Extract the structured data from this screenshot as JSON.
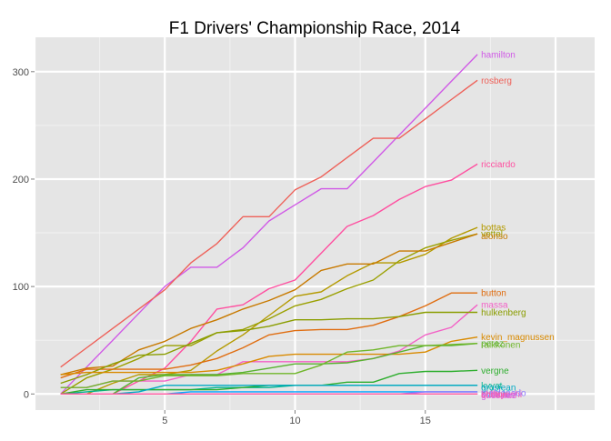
{
  "chart_data": {
    "type": "line",
    "title": "F1 Drivers' Championship Race, 2014",
    "xlabel": "",
    "ylabel": "",
    "xlim": [
      0,
      21.5
    ],
    "ylim": [
      -15,
      332
    ],
    "x_ticks": [
      5,
      10,
      15
    ],
    "y_ticks": [
      0,
      100,
      200,
      300
    ],
    "grid": true,
    "legend": "none (series labelled at line ends)",
    "x": [
      1,
      2,
      3,
      4,
      5,
      6,
      7,
      8,
      9,
      10,
      11,
      12,
      13,
      14,
      15,
      16,
      17
    ],
    "series": [
      {
        "name": "hamilton",
        "color": "#d05ae6",
        "values": [
          0,
          25,
          50,
          75,
          100,
          118,
          118,
          136,
          161,
          176,
          191,
          191,
          216,
          241,
          266,
          291,
          316
        ]
      },
      {
        "name": "rosberg",
        "color": "#ee6159",
        "values": [
          25,
          43,
          61,
          79,
          97,
          122,
          140,
          165,
          165,
          190,
          202,
          220,
          238,
          238,
          256,
          274,
          292
        ]
      },
      {
        "name": "ricciardo",
        "color": "#ff4fa0",
        "values": [
          0,
          0,
          0,
          12,
          24,
          49,
          79,
          83,
          98,
          106,
          131,
          156,
          166,
          181,
          193,
          199,
          214
        ]
      },
      {
        "name": "bottas",
        "color": "#b49a00",
        "values": [
          0,
          0,
          10,
          18,
          18,
          22,
          40,
          55,
          73,
          91,
          95,
          110,
          122,
          122,
          130,
          145,
          155
        ]
      },
      {
        "name": "vettel",
        "color": "#9aa000",
        "values": [
          0,
          15,
          23,
          33,
          45,
          45,
          57,
          60,
          70,
          82,
          88,
          98,
          106,
          124,
          136,
          143,
          149
        ]
      },
      {
        "name": "alonso",
        "color": "#c87a00",
        "values": [
          18,
          24,
          26,
          41,
          49,
          61,
          69,
          79,
          87,
          97,
          115,
          121,
          121,
          133,
          133,
          141,
          149
        ]
      },
      {
        "name": "sutil",
        "color": "#e36ae8",
        "values": [
          0,
          0,
          0,
          0,
          0,
          0,
          0,
          0,
          0,
          0,
          0,
          0,
          0,
          0,
          0,
          0,
          0
        ]
      },
      {
        "name": "button",
        "color": "#e06d10",
        "values": [
          15,
          23,
          23,
          23,
          23,
          27,
          33,
          43,
          55,
          59,
          60,
          60,
          64,
          72,
          82,
          94,
          94
        ]
      },
      {
        "name": "massa",
        "color": "#f361c6",
        "values": [
          6,
          6,
          12,
          12,
          12,
          18,
          18,
          30,
          30,
          30,
          30,
          30,
          33,
          40,
          55,
          62,
          83
        ]
      },
      {
        "name": "hulkenberg",
        "color": "#8a9d00",
        "values": [
          10,
          18,
          28,
          36,
          37,
          47,
          57,
          59,
          63,
          69,
          69,
          70,
          70,
          72,
          76,
          76,
          76
        ]
      },
      {
        "name": "kevin_magnussen",
        "color": "#d98a00",
        "values": [
          18,
          20,
          20,
          20,
          20,
          20,
          22,
          28,
          35,
          37,
          37,
          37,
          37,
          37,
          39,
          49,
          53
        ]
      },
      {
        "name": "perez",
        "color": "#58b230",
        "values": [
          0,
          0,
          0,
          15,
          18,
          18,
          18,
          20,
          24,
          28,
          28,
          29,
          33,
          39,
          45,
          45,
          47
        ]
      },
      {
        "name": "raikkonen",
        "color": "#6fb62a",
        "values": [
          6,
          6,
          12,
          12,
          17,
          17,
          17,
          19,
          19,
          19,
          27,
          39,
          41,
          45,
          45,
          46,
          47
        ]
      },
      {
        "name": "kvyat",
        "color": "#00b48f",
        "values": [
          0,
          2,
          4,
          4,
          4,
          4,
          6,
          6,
          6,
          8,
          8,
          8,
          8,
          8,
          8,
          8,
          8
        ]
      },
      {
        "name": "vergne",
        "color": "#2eae2e",
        "values": [
          0,
          4,
          4,
          4,
          4,
          4,
          4,
          6,
          8,
          8,
          8,
          11,
          11,
          19,
          21,
          21,
          22
        ]
      },
      {
        "name": "grosjean",
        "color": "#00a9c4",
        "values": [
          0,
          0,
          0,
          2,
          8,
          8,
          8,
          8,
          8,
          8,
          8,
          8,
          8,
          8,
          8,
          8,
          8
        ]
      },
      {
        "name": "bianchi",
        "color": "#00a6ff",
        "values": [
          0,
          0,
          0,
          0,
          0,
          2,
          2,
          2,
          2,
          2,
          2,
          2,
          2,
          2,
          2,
          2,
          2
        ]
      },
      {
        "name": "maldonado",
        "color": "#8f7aff",
        "values": [
          0,
          0,
          0,
          0,
          0,
          0,
          0,
          0,
          0,
          0,
          0,
          0,
          0,
          0,
          2,
          2,
          2
        ]
      },
      {
        "name": "sutil",
        "color": "#a67dff",
        "values": [
          0,
          0,
          0,
          0,
          0,
          0,
          0,
          0,
          0,
          0,
          0,
          0,
          0,
          0,
          0,
          0,
          0
        ]
      },
      {
        "name": "gutierrez",
        "color": "#d364e3",
        "values": [
          0,
          0,
          0,
          0,
          0,
          0,
          0,
          0,
          0,
          0,
          0,
          0,
          0,
          0,
          0,
          0,
          0
        ]
      },
      {
        "name": "kobayashi",
        "color": "#f05fb6",
        "values": [
          0,
          0,
          0,
          0,
          0,
          0,
          0,
          0,
          0,
          0,
          0,
          0,
          0,
          0,
          0,
          0,
          0
        ]
      },
      {
        "name": "ericsson",
        "color": "#e76bd8",
        "values": [
          0,
          0,
          0,
          0,
          0,
          0,
          0,
          0,
          0,
          0,
          0,
          0,
          0,
          0,
          0,
          0,
          0
        ]
      },
      {
        "name": "chilton",
        "color": "#ff5fa0",
        "values": [
          0,
          0,
          0,
          0,
          0,
          0,
          0,
          0,
          0,
          0,
          0,
          0,
          0,
          0,
          0,
          0,
          0
        ]
      }
    ],
    "labels": [
      {
        "text": "hamilton",
        "color": "#d05ae6"
      },
      {
        "text": "rosberg",
        "color": "#ee6159"
      },
      {
        "text": "ricciardo",
        "color": "#ff4fa0"
      },
      {
        "text": "bottas",
        "color": "#b49a00"
      },
      {
        "text": "vettel",
        "color": "#9aa000"
      },
      {
        "text": "alonso",
        "color": "#c87a00"
      },
      {
        "text": "button",
        "color": "#e06d10"
      },
      {
        "text": "massa",
        "color": "#f361c6"
      },
      {
        "text": "hulkenberg",
        "color": "#8a9d00"
      },
      {
        "text": "kevin_magnussen",
        "color": "#d98a00"
      },
      {
        "text": "perez",
        "color": "#58b230"
      },
      {
        "text": "raikkonen",
        "color": "#6fb62a"
      },
      {
        "text": "vergne",
        "color": "#2eae2e"
      },
      {
        "text": "kvyat",
        "color": "#00b48f"
      },
      {
        "text": "grosjean",
        "color": "#00a9c4"
      },
      {
        "text": "bianchi",
        "color": "#00a6ff"
      },
      {
        "text": "maldonado",
        "color": "#8f7aff"
      },
      {
        "text": "kobayashi",
        "color": "#f05fb6"
      },
      {
        "text": "sutil",
        "color": "#a67dff"
      },
      {
        "text": "gutierrez",
        "color": "#d364e3"
      },
      {
        "text": "ericsson",
        "color": "#e76bd8"
      },
      {
        "text": "chilton",
        "color": "#ff5fa0"
      }
    ]
  }
}
